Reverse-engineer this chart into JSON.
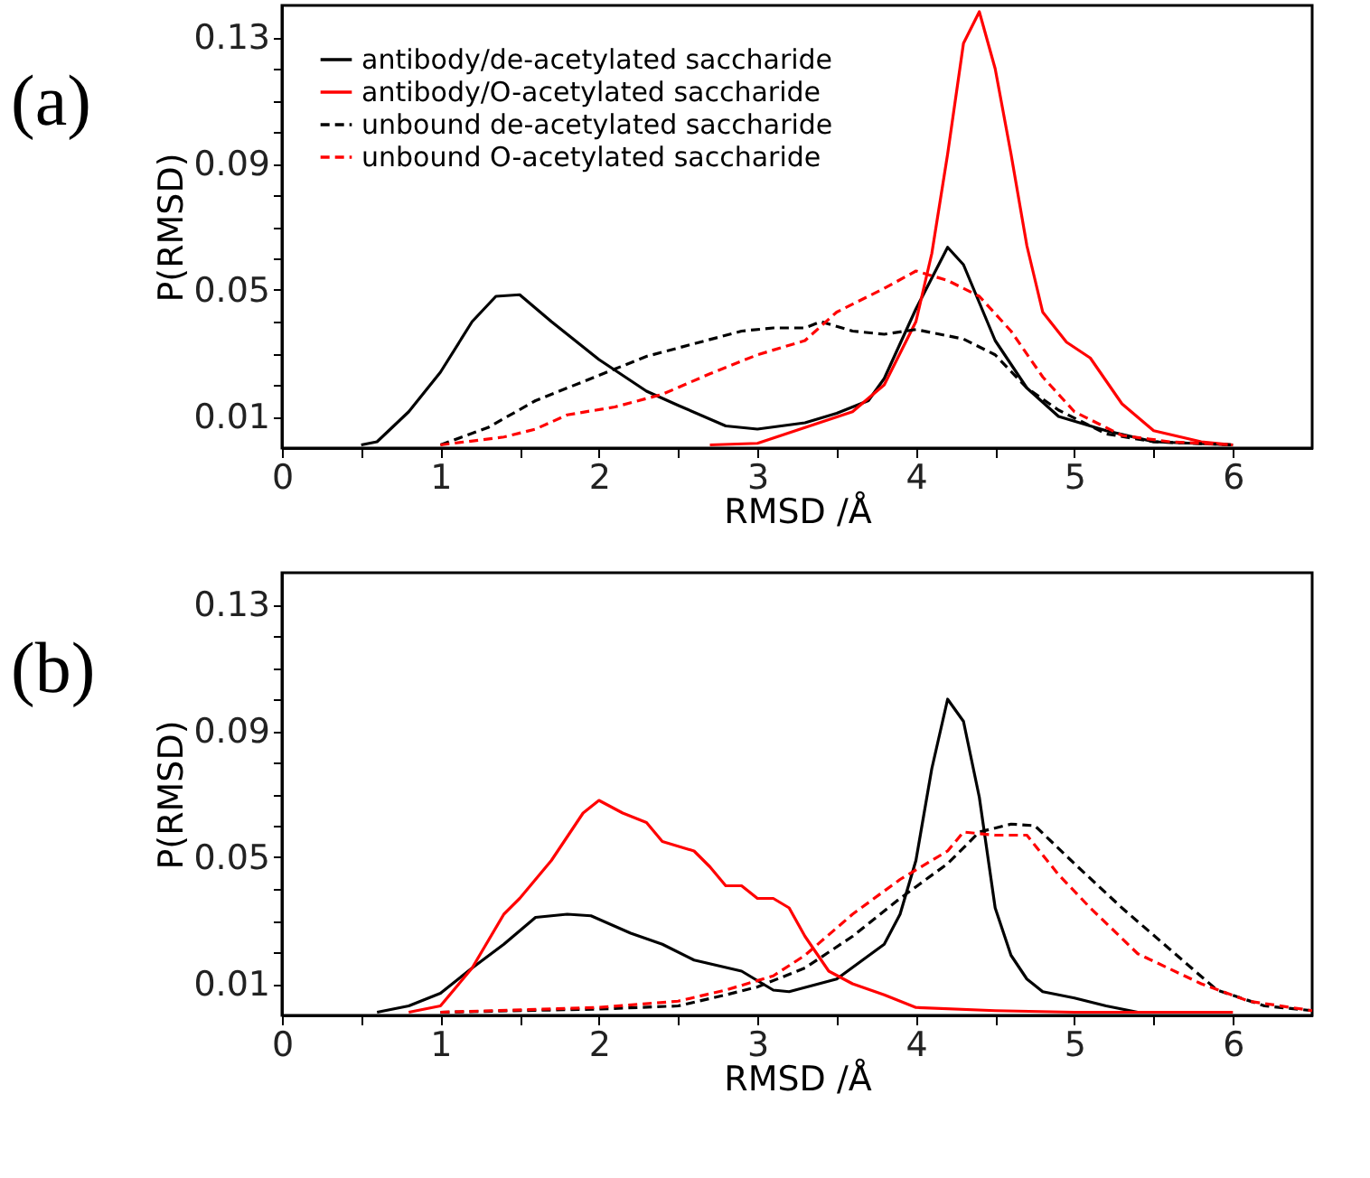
{
  "chart_data": [
    {
      "type": "line",
      "title": "(a)",
      "xlabel": "RMSD /Å",
      "ylabel": "P(RMSD)",
      "xlim": [
        0,
        6.5
      ],
      "ylim": [
        0,
        0.14
      ],
      "xticks": [
        0,
        {
          "value": 0.5,
          "label": null
        },
        1,
        {
          "value": 1.5,
          "label": null
        },
        2,
        {
          "value": 2.5,
          "label": null
        },
        3,
        {
          "value": 3.5,
          "label": null
        },
        4,
        {
          "value": 4.5,
          "label": null
        },
        5,
        {
          "value": 5.5,
          "label": null
        },
        6
      ],
      "yticks": [
        0.01,
        {
          "value": 0.02,
          "label": null
        },
        {
          "value": 0.03,
          "label": null
        },
        {
          "value": 0.04,
          "label": null
        },
        0.05,
        {
          "value": 0.06,
          "label": null
        },
        {
          "value": 0.07,
          "label": null
        },
        {
          "value": 0.08,
          "label": null
        },
        0.09,
        {
          "value": 0.1,
          "label": null
        },
        {
          "value": 0.11,
          "label": null
        },
        {
          "value": 0.12,
          "label": null
        },
        0.13
      ],
      "legend": "top left",
      "grid": false,
      "series": [
        {
          "name": "antibody/de-acetylated saccharide",
          "color": "#000000",
          "line_style": "solid",
          "x": [
            0.5,
            0.6,
            0.8,
            1.0,
            1.2,
            1.35,
            1.5,
            1.7,
            2.0,
            2.3,
            2.5,
            2.8,
            3.0,
            3.3,
            3.5,
            3.7,
            3.8,
            4.0,
            4.2,
            4.3,
            4.5,
            4.7,
            4.9,
            5.2,
            5.5,
            6.0
          ],
          "values": [
            0.001,
            0.002,
            0.0115,
            0.024,
            0.04,
            0.048,
            0.0485,
            0.04,
            0.028,
            0.018,
            0.0135,
            0.007,
            0.006,
            0.008,
            0.011,
            0.015,
            0.022,
            0.044,
            0.0635,
            0.058,
            0.034,
            0.019,
            0.01,
            0.0055,
            0.002,
            0.001
          ]
        },
        {
          "name": "antibody/O-acetylated saccharide",
          "color": "#ff0000",
          "line_style": "solid",
          "x": [
            2.7,
            3.0,
            3.3,
            3.6,
            3.8,
            4.0,
            4.1,
            4.2,
            4.3,
            4.4,
            4.5,
            4.6,
            4.7,
            4.8,
            4.95,
            5.1,
            5.3,
            5.5,
            5.8,
            6.0
          ],
          "values": [
            0.001,
            0.0015,
            0.0065,
            0.0115,
            0.02,
            0.04,
            0.0615,
            0.093,
            0.128,
            0.138,
            0.12,
            0.093,
            0.064,
            0.043,
            0.0335,
            0.0285,
            0.014,
            0.0055,
            0.002,
            0.001
          ]
        },
        {
          "name": "unbound de-acetylated saccharide",
          "color": "#000000",
          "line_style": "dashed",
          "x": [
            1.0,
            1.3,
            1.6,
            2.0,
            2.3,
            2.6,
            2.9,
            3.1,
            3.3,
            3.4,
            3.6,
            3.8,
            4.0,
            4.3,
            4.5,
            4.7,
            4.9,
            5.2,
            5.5,
            6.0
          ],
          "values": [
            0.001,
            0.0065,
            0.015,
            0.023,
            0.029,
            0.033,
            0.037,
            0.038,
            0.038,
            0.04,
            0.037,
            0.036,
            0.0375,
            0.0345,
            0.0295,
            0.019,
            0.012,
            0.0045,
            0.002,
            0.001
          ]
        },
        {
          "name": "unbound O-acetylated saccharide",
          "color": "#ff0000",
          "line_style": "dashed",
          "x": [
            1.0,
            1.4,
            1.6,
            1.8,
            2.1,
            2.4,
            2.7,
            3.0,
            3.3,
            3.5,
            3.8,
            4.0,
            4.2,
            4.4,
            4.6,
            4.8,
            5.0,
            5.3,
            5.6,
            6.0
          ],
          "values": [
            0.001,
            0.0035,
            0.006,
            0.0105,
            0.013,
            0.017,
            0.0235,
            0.0295,
            0.034,
            0.043,
            0.0505,
            0.056,
            0.053,
            0.048,
            0.037,
            0.0225,
            0.0115,
            0.004,
            0.002,
            0.001
          ]
        }
      ]
    },
    {
      "type": "line",
      "title": "(b)",
      "xlabel": "RMSD /Å",
      "ylabel": "P(RMSD)",
      "xlim": [
        0,
        6.5
      ],
      "ylim": [
        0,
        0.14
      ],
      "xticks": [
        0,
        {
          "value": 0.5,
          "label": null
        },
        1,
        {
          "value": 1.5,
          "label": null
        },
        2,
        {
          "value": 2.5,
          "label": null
        },
        3,
        {
          "value": 3.5,
          "label": null
        },
        4,
        {
          "value": 4.5,
          "label": null
        },
        5,
        {
          "value": 5.5,
          "label": null
        },
        6
      ],
      "yticks": [
        0.01,
        {
          "value": 0.02,
          "label": null
        },
        {
          "value": 0.03,
          "label": null
        },
        {
          "value": 0.04,
          "label": null
        },
        0.05,
        {
          "value": 0.06,
          "label": null
        },
        {
          "value": 0.07,
          "label": null
        },
        {
          "value": 0.08,
          "label": null
        },
        0.09,
        {
          "value": 0.1,
          "label": null
        },
        {
          "value": 0.11,
          "label": null
        },
        {
          "value": 0.12,
          "label": null
        },
        0.13
      ],
      "grid": false,
      "series": [
        {
          "color": "#000000",
          "line_style": "solid",
          "x": [
            0.6,
            0.8,
            1.0,
            1.2,
            1.4,
            1.6,
            1.8,
            1.95,
            2.2,
            2.4,
            2.6,
            2.9,
            3.1,
            3.2,
            3.5,
            3.8,
            3.9,
            4.0,
            4.1,
            4.2,
            4.3,
            4.4,
            4.5,
            4.6,
            4.7,
            4.8,
            5.0,
            5.2,
            5.4
          ],
          "values": [
            0.001,
            0.003,
            0.007,
            0.015,
            0.0225,
            0.031,
            0.032,
            0.0315,
            0.026,
            0.0225,
            0.0175,
            0.014,
            0.008,
            0.0075,
            0.0115,
            0.0225,
            0.032,
            0.049,
            0.078,
            0.1,
            0.093,
            0.069,
            0.034,
            0.019,
            0.0115,
            0.0075,
            0.0055,
            0.003,
            0.001
          ]
        },
        {
          "color": "#ff0000",
          "line_style": "solid",
          "x": [
            0.8,
            1.0,
            1.2,
            1.4,
            1.5,
            1.7,
            1.9,
            2.0,
            2.15,
            2.3,
            2.4,
            2.6,
            2.7,
            2.8,
            2.9,
            3.0,
            3.1,
            3.2,
            3.3,
            3.45,
            3.6,
            3.8,
            4.0,
            4.5,
            5.0,
            6.0
          ],
          "values": [
            0.001,
            0.003,
            0.015,
            0.032,
            0.037,
            0.049,
            0.064,
            0.068,
            0.064,
            0.061,
            0.055,
            0.052,
            0.047,
            0.041,
            0.041,
            0.037,
            0.037,
            0.034,
            0.025,
            0.014,
            0.01,
            0.0065,
            0.0025,
            0.0015,
            0.001,
            0.001
          ]
        },
        {
          "color": "#000000",
          "line_style": "dashed",
          "x": [
            1.0,
            2.0,
            2.5,
            2.8,
            3.0,
            3.3,
            3.6,
            3.9,
            4.2,
            4.4,
            4.6,
            4.75,
            5.0,
            5.3,
            5.6,
            5.9,
            6.2,
            6.5
          ],
          "values": [
            0.001,
            0.002,
            0.003,
            0.0065,
            0.009,
            0.015,
            0.025,
            0.037,
            0.048,
            0.058,
            0.0605,
            0.06,
            0.048,
            0.034,
            0.021,
            0.008,
            0.003,
            0.0015
          ]
        },
        {
          "color": "#ff0000",
          "line_style": "dashed",
          "x": [
            1.0,
            2.0,
            2.5,
            2.8,
            3.1,
            3.3,
            3.6,
            3.9,
            4.2,
            4.3,
            4.5,
            4.7,
            4.9,
            5.1,
            5.4,
            5.8,
            6.1,
            6.5
          ],
          "values": [
            0.001,
            0.0025,
            0.0045,
            0.008,
            0.0125,
            0.019,
            0.032,
            0.043,
            0.052,
            0.058,
            0.057,
            0.057,
            0.0445,
            0.034,
            0.0195,
            0.01,
            0.0045,
            0.0015
          ]
        }
      ]
    }
  ]
}
